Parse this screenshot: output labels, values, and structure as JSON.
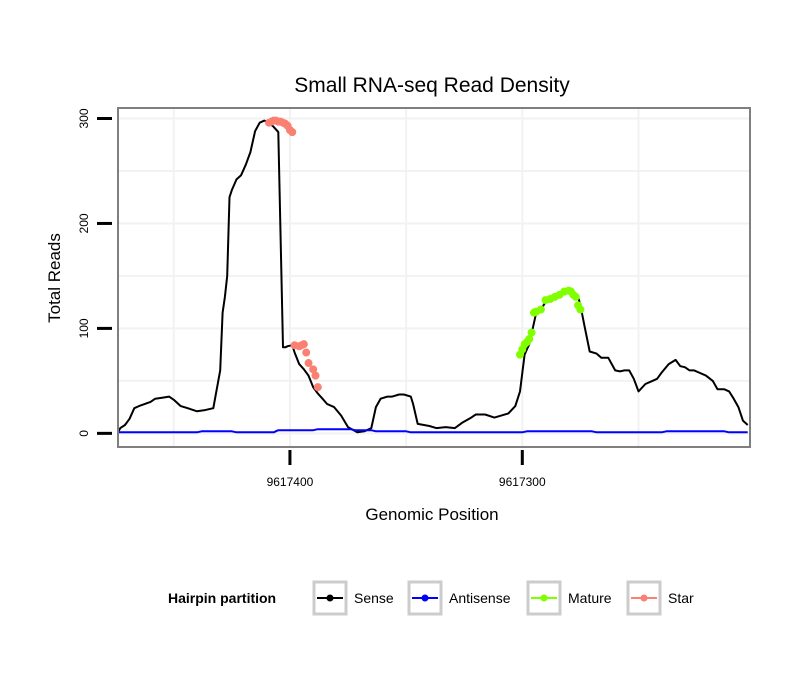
{
  "chart_data": {
    "type": "line",
    "title": "Small RNA-seq Read Density",
    "xlabel": "Genomic Position",
    "ylabel": "Total Reads",
    "xlim": [
      9617474,
      9617202
    ],
    "ylim": [
      -13,
      310
    ],
    "x_reversed": true,
    "xticks": [
      9617400,
      9617300
    ],
    "xtick_labels": [
      "9617400",
      "9617300"
    ],
    "yticks": [
      0,
      100,
      200,
      300
    ],
    "ytick_labels": [
      "0",
      "100",
      "200",
      "300"
    ],
    "grid": true,
    "legend_position": "bottom",
    "legend_title": "Hairpin partition",
    "series": [
      {
        "name": "Sense",
        "color": "#000000",
        "x": [
          9617474,
          9617473,
          9617471,
          9617469,
          9617467,
          9617465,
          9617460,
          9617458,
          9617455,
          9617452,
          9617450,
          9617447,
          9617444,
          9617440,
          9617437,
          9617433,
          9617430,
          9617429,
          9617428,
          9617427,
          9617426,
          9617425,
          9617423,
          9617421,
          9617419,
          9617417,
          9617415,
          9617413,
          9617411,
          9617409,
          9617407,
          9617405,
          9617403,
          9617402,
          9617401,
          9617399,
          9617398,
          9617396,
          9617394,
          9617392,
          9617390,
          9617388,
          9617386,
          9617384,
          9617381,
          9617378,
          9617375,
          9617371,
          9617368,
          9617365,
          9617363,
          9617361,
          9617358,
          9617356,
          9617353,
          9617351,
          9617348,
          9617347,
          9617345,
          9617340,
          9617337,
          9617333,
          9617329,
          9617326,
          9617322,
          9617320,
          9617318,
          9617316,
          9617312,
          9617306,
          9617303,
          9617301,
          9617299,
          9617298,
          9617297,
          9617296,
          9617294,
          9617292,
          9617290,
          9617288,
          9617286,
          9617284,
          9617282,
          9617280,
          9617278,
          9617276,
          9617275,
          9617273,
          9617271,
          9617268,
          9617266,
          9617263,
          9617260,
          9617258,
          9617256,
          9617254,
          9617252,
          9617250,
          9617247,
          9617244,
          9617242,
          9617240,
          9617237,
          9617234,
          9617232,
          9617230,
          9617228,
          9617226,
          9617224,
          9617221,
          9617218,
          9617216,
          9617213,
          9617211,
          9617209,
          9617207,
          9617205,
          9617204,
          9617203
        ],
        "y": [
          1,
          5,
          8,
          14,
          24,
          26,
          30,
          33,
          34,
          35,
          32,
          26,
          24,
          21,
          22,
          24,
          60,
          115,
          130,
          150,
          225,
          232,
          242,
          246,
          256,
          268,
          288,
          296,
          298,
          296,
          292,
          287,
          82,
          82,
          83,
          84,
          77,
          66,
          61,
          55,
          44,
          38,
          33,
          28,
          25,
          17,
          6,
          1,
          2,
          5,
          25,
          33,
          35,
          35,
          37,
          37,
          35,
          28,
          9,
          7,
          5,
          6,
          5,
          10,
          15,
          18,
          18,
          18,
          15,
          19,
          26,
          40,
          75,
          80,
          85,
          95,
          115,
          118,
          125,
          127,
          130,
          132,
          135,
          136,
          134,
          130,
          122,
          100,
          78,
          76,
          72,
          72,
          60,
          59,
          60,
          60,
          52,
          40,
          47,
          50,
          52,
          58,
          66,
          70,
          64,
          63,
          60,
          60,
          58,
          55,
          50,
          42,
          42,
          40,
          33,
          25,
          12,
          10,
          8
        ]
      },
      {
        "name": "Antisense",
        "color": "#0000ff",
        "x": [
          9617474,
          9617440,
          9617438,
          9617425,
          9617423,
          9617407,
          9617405,
          9617390,
          9617388,
          9617374,
          9617372,
          9617365,
          9617363,
          9617350,
          9617348,
          9617300,
          9617298,
          9617270,
          9617268,
          9617240,
          9617238,
          9617213,
          9617211,
          9617203
        ],
        "y": [
          1,
          1,
          2,
          2,
          1,
          1,
          3,
          3,
          4,
          4,
          3,
          3,
          2,
          2,
          1,
          1,
          2,
          2,
          1,
          1,
          2,
          2,
          1,
          1
        ]
      },
      {
        "name": "Mature",
        "color": "#80ff00",
        "x": [
          9617301,
          9617300,
          9617299,
          9617298,
          9617297,
          9617296,
          9617295,
          9617294,
          9617292,
          9617290,
          9617288,
          9617286,
          9617284,
          9617282,
          9617280,
          9617279,
          9617278,
          9617277,
          9617276,
          9617275
        ],
        "y": [
          75,
          80,
          85,
          87,
          90,
          96,
          115,
          116,
          118,
          127,
          128,
          130,
          132,
          135,
          136,
          135,
          132,
          130,
          122,
          118
        ]
      },
      {
        "name": "Star",
        "color": "#fa8072",
        "x": [
          9617409,
          9617408,
          9617407,
          9617406,
          9617405,
          9617404,
          9617403,
          9617402,
          9617401,
          9617400,
          9617399,
          9617398,
          9617396,
          9617395,
          9617394,
          9617393,
          9617392,
          9617390,
          9617389,
          9617388
        ],
        "y": [
          296,
          297,
          298,
          298,
          297,
          297,
          296,
          295,
          293,
          289,
          287,
          84,
          83,
          84,
          85,
          77,
          67,
          61,
          55,
          44
        ]
      }
    ]
  },
  "legend": {
    "title": "Hairpin partition",
    "items": [
      {
        "label": "Sense",
        "color": "#000000"
      },
      {
        "label": "Antisense",
        "color": "#0000ff"
      },
      {
        "label": "Mature",
        "color": "#80ff00"
      },
      {
        "label": "Star",
        "color": "#fa8072"
      }
    ]
  },
  "style": {
    "panel_border_color": "#7f7f7f",
    "grid_color": "#f2f2f2",
    "background": "#ffffff"
  }
}
